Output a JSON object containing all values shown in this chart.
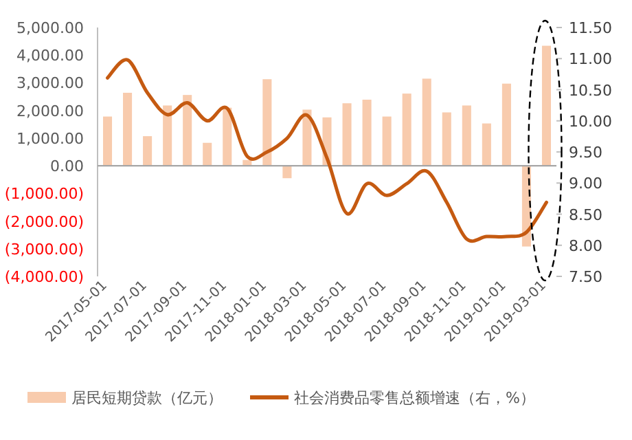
{
  "chart_data": {
    "type": "bar",
    "categories": [
      "2017-05-01",
      null,
      "2017-07-01",
      null,
      "2017-09-01",
      null,
      "2017-11-01",
      null,
      "2018-01-01",
      null,
      "2018-03-01",
      null,
      "2018-05-01",
      null,
      "2018-07-01",
      null,
      "2018-09-01",
      null,
      "2018-11-01",
      null,
      "2019-01-01",
      null,
      "2019-03-01"
    ],
    "series": [
      {
        "name": "居民短期贷款（亿元）",
        "color": "#f8cbad",
        "values": [
          1780,
          2640,
          1070,
          2180,
          2560,
          830,
          2100,
          210,
          3130,
          -450,
          2030,
          1750,
          2260,
          2390,
          1780,
          2610,
          3150,
          1930,
          2180,
          1530,
          2970,
          -2920,
          4340
        ]
      },
      {
        "name": "社会消费品零售总额增速（右，%）",
        "type": "line",
        "axis": "y2",
        "color": "#c55a11",
        "values": [
          10.69,
          10.98,
          10.45,
          10.1,
          10.29,
          10.0,
          10.2,
          9.43,
          9.5,
          9.72,
          10.09,
          9.4,
          8.51,
          8.99,
          8.8,
          8.99,
          9.19,
          8.69,
          8.1,
          8.14,
          8.14,
          8.21,
          8.69
        ]
      }
    ],
    "ylim": [
      -4000,
      5000
    ],
    "yticks": [
      {
        "value": 5000,
        "label": "5,000.00"
      },
      {
        "value": 4000,
        "label": "4,000.00"
      },
      {
        "value": 3000,
        "label": "3,000.00"
      },
      {
        "value": 2000,
        "label": "2,000.00"
      },
      {
        "value": 1000,
        "label": "1,000.00"
      },
      {
        "value": 0,
        "label": "0.00"
      },
      {
        "value": -1000,
        "label": "(1,000.00)"
      },
      {
        "value": -2000,
        "label": "(2,000.00)"
      },
      {
        "value": -3000,
        "label": "(3,000.00)"
      },
      {
        "value": -4000,
        "label": "(4,000.00)"
      }
    ],
    "y2lim": [
      7.5,
      11.5
    ],
    "y2ticks": [
      {
        "value": 11.5,
        "label": "11.50"
      },
      {
        "value": 11,
        "label": "11.00"
      },
      {
        "value": 10.5,
        "label": "10.50"
      },
      {
        "value": 10,
        "label": "10.00"
      },
      {
        "value": 9.5,
        "label": "9.50"
      },
      {
        "value": 9,
        "label": "9.00"
      },
      {
        "value": 8.5,
        "label": "8.50"
      },
      {
        "value": 8,
        "label": "8.00"
      },
      {
        "value": 7.5,
        "label": "7.50"
      }
    ],
    "legend": "bottom"
  }
}
